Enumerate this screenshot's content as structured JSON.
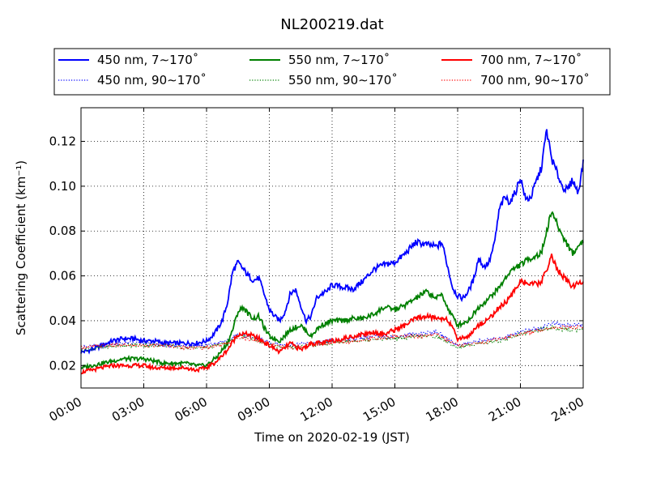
{
  "chart_data": {
    "type": "line",
    "title": "NL200219.dat",
    "xlabel": "Time on 2020-02-19 (JST)",
    "ylabel": "Scattering Coefficient (km⁻¹)",
    "xlim": [
      0,
      24
    ],
    "ylim": [
      0.01,
      0.135
    ],
    "xticks": [
      0,
      3,
      6,
      9,
      12,
      15,
      18,
      21,
      24
    ],
    "xtick_labels": [
      "00:00",
      "03:00",
      "06:00",
      "09:00",
      "12:00",
      "15:00",
      "18:00",
      "21:00",
      "24:00"
    ],
    "yticks": [
      0.02,
      0.04,
      0.06,
      0.08,
      0.1,
      0.12
    ],
    "ytick_labels": [
      "0.02",
      "0.04",
      "0.06",
      "0.08",
      "0.10",
      "0.12"
    ],
    "grid": true,
    "legend_position": "top, above plot, 3 columns",
    "x_unit": "hours (JST)",
    "series": [
      {
        "name": "450 nm, 7∼170˚",
        "color": "#0000ff",
        "style": "solid",
        "x": [
          0,
          0.5,
          1,
          1.5,
          2,
          2.5,
          3,
          3.5,
          4,
          4.5,
          5,
          5.5,
          6,
          6.25,
          6.5,
          6.75,
          7,
          7.25,
          7.5,
          7.75,
          8,
          8.25,
          8.5,
          8.75,
          9,
          9.25,
          9.5,
          9.75,
          10,
          10.25,
          10.5,
          10.75,
          11,
          11.25,
          11.5,
          11.75,
          12,
          12.5,
          13,
          13.5,
          14,
          14.5,
          15,
          15.5,
          16,
          16.5,
          17,
          17.25,
          17.5,
          17.75,
          18,
          18.25,
          18.5,
          18.75,
          19,
          19.25,
          19.5,
          19.75,
          20,
          20.25,
          20.5,
          20.75,
          21,
          21.25,
          21.5,
          21.75,
          22,
          22.25,
          22.5,
          22.75,
          23,
          23.25,
          23.5,
          23.75,
          24
        ],
        "y": [
          0.026,
          0.027,
          0.029,
          0.031,
          0.032,
          0.032,
          0.031,
          0.031,
          0.03,
          0.03,
          0.03,
          0.03,
          0.031,
          0.033,
          0.036,
          0.04,
          0.048,
          0.062,
          0.066,
          0.063,
          0.06,
          0.058,
          0.059,
          0.052,
          0.045,
          0.042,
          0.04,
          0.044,
          0.052,
          0.054,
          0.047,
          0.04,
          0.042,
          0.05,
          0.052,
          0.053,
          0.056,
          0.055,
          0.054,
          0.058,
          0.063,
          0.065,
          0.066,
          0.07,
          0.075,
          0.074,
          0.073,
          0.075,
          0.065,
          0.055,
          0.051,
          0.05,
          0.053,
          0.058,
          0.068,
          0.064,
          0.066,
          0.074,
          0.09,
          0.095,
          0.093,
          0.097,
          0.104,
          0.094,
          0.095,
          0.102,
          0.108,
          0.125,
          0.112,
          0.106,
          0.1,
          0.098,
          0.103,
          0.097,
          0.11
        ]
      },
      {
        "name": "450 nm, 90∼170˚",
        "color": "#0000ff",
        "style": "dotted",
        "x": [
          0,
          1,
          2,
          3,
          4,
          5,
          6,
          7,
          7.5,
          8,
          8.5,
          9,
          10,
          11,
          12,
          13,
          14,
          15,
          16,
          17,
          18,
          19,
          20,
          21,
          22,
          22.5,
          23,
          24
        ],
        "y": [
          0.028,
          0.029,
          0.03,
          0.03,
          0.029,
          0.029,
          0.029,
          0.031,
          0.034,
          0.033,
          0.032,
          0.03,
          0.029,
          0.03,
          0.031,
          0.032,
          0.033,
          0.033,
          0.034,
          0.035,
          0.029,
          0.031,
          0.032,
          0.035,
          0.037,
          0.039,
          0.038,
          0.038
        ]
      },
      {
        "name": "550 nm, 7∼170˚",
        "color": "#008000",
        "style": "solid",
        "x": [
          0,
          0.5,
          1,
          1.5,
          2,
          2.5,
          3,
          3.5,
          4,
          4.5,
          5,
          5.5,
          6,
          6.5,
          7,
          7.25,
          7.5,
          7.75,
          8,
          8.25,
          8.5,
          8.75,
          9,
          9.5,
          10,
          10.5,
          11,
          11.25,
          11.5,
          12,
          12.5,
          13,
          13.5,
          14,
          14.5,
          15,
          15.5,
          16,
          16.5,
          17,
          17.25,
          17.5,
          18,
          18.5,
          19,
          19.5,
          20,
          20.5,
          21,
          21.5,
          22,
          22.25,
          22.5,
          22.75,
          23,
          23.5,
          24
        ],
        "y": [
          0.019,
          0.02,
          0.021,
          0.022,
          0.023,
          0.023,
          0.023,
          0.022,
          0.021,
          0.021,
          0.021,
          0.02,
          0.02,
          0.024,
          0.03,
          0.036,
          0.044,
          0.046,
          0.043,
          0.041,
          0.042,
          0.037,
          0.033,
          0.031,
          0.036,
          0.038,
          0.033,
          0.036,
          0.038,
          0.04,
          0.04,
          0.041,
          0.041,
          0.043,
          0.046,
          0.045,
          0.047,
          0.05,
          0.053,
          0.05,
          0.052,
          0.046,
          0.038,
          0.04,
          0.046,
          0.05,
          0.055,
          0.062,
          0.065,
          0.068,
          0.07,
          0.08,
          0.089,
          0.083,
          0.078,
          0.07,
          0.076
        ]
      },
      {
        "name": "550 nm, 90∼170˚",
        "color": "#008000",
        "style": "dotted",
        "x": [
          0,
          1,
          2,
          3,
          4,
          5,
          6,
          7,
          7.5,
          8,
          8.5,
          9,
          10,
          11,
          12,
          13,
          14,
          15,
          16,
          17,
          18,
          19,
          20,
          21,
          22,
          22.5,
          23,
          24
        ],
        "y": [
          0.027,
          0.028,
          0.029,
          0.029,
          0.029,
          0.028,
          0.028,
          0.03,
          0.033,
          0.033,
          0.031,
          0.029,
          0.028,
          0.029,
          0.03,
          0.031,
          0.032,
          0.032,
          0.033,
          0.033,
          0.028,
          0.03,
          0.031,
          0.034,
          0.036,
          0.037,
          0.036,
          0.036
        ]
      },
      {
        "name": "700 nm, 7∼170˚",
        "color": "#ff0000",
        "style": "solid",
        "x": [
          0,
          0.5,
          1,
          1.5,
          2,
          2.5,
          3,
          3.5,
          4,
          4.5,
          5,
          5.5,
          6,
          6.5,
          7,
          7.5,
          8,
          8.5,
          9,
          9.5,
          10,
          10.5,
          11,
          11.5,
          12,
          12.5,
          13,
          13.5,
          14,
          14.5,
          15,
          15.5,
          16,
          16.5,
          17,
          17.5,
          18,
          18.5,
          19,
          19.5,
          20,
          20.5,
          21,
          21.5,
          22,
          22.25,
          22.5,
          22.75,
          23,
          23.5,
          24
        ],
        "y": [
          0.017,
          0.018,
          0.019,
          0.02,
          0.02,
          0.02,
          0.02,
          0.019,
          0.019,
          0.019,
          0.019,
          0.018,
          0.019,
          0.022,
          0.027,
          0.034,
          0.034,
          0.032,
          0.029,
          0.026,
          0.03,
          0.027,
          0.03,
          0.03,
          0.031,
          0.032,
          0.033,
          0.034,
          0.035,
          0.034,
          0.036,
          0.038,
          0.041,
          0.042,
          0.041,
          0.041,
          0.032,
          0.033,
          0.038,
          0.041,
          0.046,
          0.05,
          0.058,
          0.056,
          0.057,
          0.063,
          0.069,
          0.063,
          0.06,
          0.055,
          0.058
        ]
      },
      {
        "name": "700 nm, 90∼170˚",
        "color": "#ff0000",
        "style": "dotted",
        "x": [
          0,
          1,
          2,
          3,
          4,
          5,
          6,
          7,
          7.5,
          8,
          8.5,
          9,
          10,
          11,
          12,
          13,
          14,
          15,
          16,
          17,
          18,
          19,
          20,
          21,
          22,
          22.5,
          23,
          24
        ],
        "y": [
          0.028,
          0.029,
          0.029,
          0.029,
          0.029,
          0.028,
          0.028,
          0.03,
          0.033,
          0.032,
          0.031,
          0.029,
          0.028,
          0.029,
          0.03,
          0.031,
          0.032,
          0.033,
          0.033,
          0.034,
          0.029,
          0.03,
          0.032,
          0.034,
          0.036,
          0.037,
          0.037,
          0.037
        ]
      }
    ]
  }
}
